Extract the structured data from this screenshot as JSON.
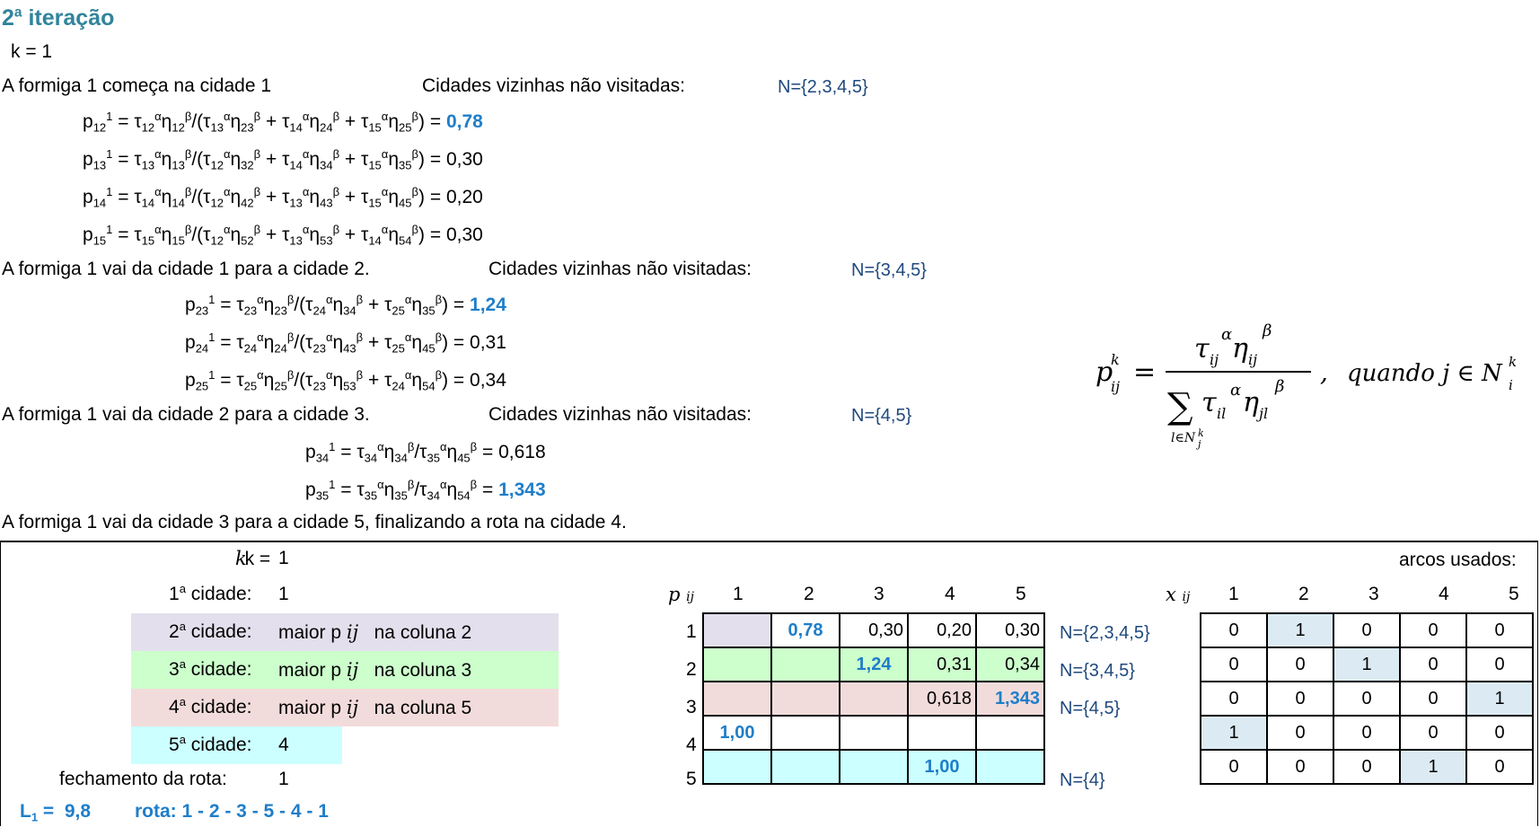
{
  "title": "2ª iteração",
  "k_line": "k = 1",
  "steps": {
    "s1": {
      "text": "A formiga 1 começa na cidade 1",
      "neighbors_label": "Cidades vizinhas não visitadas:",
      "set": "N={2,3,4,5}"
    },
    "s2": {
      "text": "A formiga 1 vai da cidade 1 para a cidade 2.",
      "neighbors_label": "Cidades vizinhas não visitadas:",
      "set": "N={3,4,5}"
    },
    "s3": {
      "text": "A formiga 1 vai da cidade 2 para a cidade 3.",
      "neighbors_label": "Cidades vizinhas não visitadas:",
      "set": "N={4,5}"
    },
    "s4": {
      "text": "A formiga 1 vai da cidade 3 para a cidade 5, finalizando a rota na cidade 4."
    }
  },
  "equations": {
    "p12": "0,78",
    "p13": "0,30",
    "p14": "0,20",
    "p15": "0,30",
    "p23": "1,24",
    "p24": "0,31",
    "p25": "0,34",
    "p34": "0,618",
    "p35": "1,343"
  },
  "formula": {
    "condition": "quando j ∈ N"
  },
  "summary": {
    "k_label": "k =",
    "k_value": "1",
    "c1_label": "cidade:",
    "c1_value": "1",
    "c2_label": "cidade:",
    "c2_text": "maior p",
    "c2_col": "na coluna 2",
    "c3_label": "cidade:",
    "c3_text": "maior p",
    "c3_col": "na coluna 3",
    "c4_label": "cidade:",
    "c4_text": "maior p",
    "c4_col": "na coluna 5",
    "c5_label": "cidade:",
    "c5_value": "4",
    "close_label": "fechamento da rota:",
    "close_value": "1",
    "L_label": "L",
    "L_value": "9,8",
    "route": "rota: 1 - 2 - 3 - 5 - 4 - 1"
  },
  "p_matrix": {
    "header": [
      "1",
      "2",
      "3",
      "4",
      "5"
    ],
    "rows": [
      {
        "label": "1",
        "cells": [
          "",
          "0,78",
          "0,30",
          "0,20",
          "0,30"
        ],
        "set": "N={2,3,4,5}"
      },
      {
        "label": "2",
        "cells": [
          "",
          "",
          "1,24",
          "0,31",
          "0,34"
        ],
        "set": "N={3,4,5}"
      },
      {
        "label": "3",
        "cells": [
          "",
          "",
          "",
          "0,618",
          "1,343"
        ],
        "set": "N={4,5}"
      },
      {
        "label": "4",
        "cells": [
          "1,00",
          "",
          "",
          "",
          ""
        ],
        "set": ""
      },
      {
        "label": "5",
        "cells": [
          "",
          "",
          "",
          "1,00",
          ""
        ],
        "set": "N={4}"
      }
    ]
  },
  "x_matrix": {
    "title": "arcos usados:",
    "header": [
      "1",
      "2",
      "3",
      "4",
      "5"
    ],
    "rows": [
      [
        "0",
        "1",
        "0",
        "0",
        "0"
      ],
      [
        "0",
        "0",
        "1",
        "0",
        "0"
      ],
      [
        "0",
        "0",
        "0",
        "0",
        "1"
      ],
      [
        "1",
        "0",
        "0",
        "0",
        "0"
      ],
      [
        "0",
        "0",
        "0",
        "1",
        "0"
      ]
    ]
  }
}
